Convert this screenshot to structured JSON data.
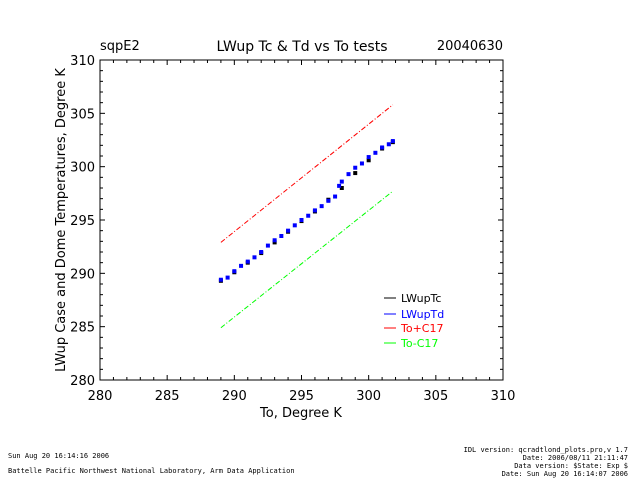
{
  "chart_data": {
    "type": "scatter",
    "site": "sqpE2",
    "title": "LWup Tc & Td vs To tests",
    "date": "20040630",
    "xlabel": "To, Degree K",
    "ylabel": "LWup Case and Dome Temperatures, Degree K",
    "xlim": [
      280,
      310
    ],
    "ylim": [
      280,
      310
    ],
    "xticks": [
      "280",
      "285",
      "290",
      "295",
      "300",
      "305",
      "310"
    ],
    "yticks": [
      "280",
      "285",
      "290",
      "295",
      "300",
      "305",
      "310"
    ],
    "legend_position": "bottom-right",
    "series": [
      {
        "name": "LWupTc",
        "color": "#000000",
        "style": "points",
        "x": [
          289.0,
          290.0,
          291.0,
          292.0,
          293.0,
          294.0,
          295.0,
          296.0,
          297.0,
          298.0,
          299.0,
          300.0,
          301.0,
          301.8
        ],
        "y": [
          289.3,
          290.1,
          291.0,
          291.9,
          292.9,
          293.9,
          294.9,
          295.8,
          296.9,
          298.0,
          299.4,
          300.6,
          301.7,
          302.3
        ]
      },
      {
        "name": "LWupTd",
        "color": "#0000ff",
        "style": "points",
        "x": [
          289.0,
          289.5,
          290.0,
          290.5,
          291.0,
          291.5,
          292.0,
          292.5,
          293.0,
          293.5,
          294.0,
          294.5,
          295.0,
          295.5,
          296.0,
          296.5,
          297.0,
          297.5,
          297.8,
          298.0,
          298.5,
          299.0,
          299.5,
          300.0,
          300.5,
          301.0,
          301.5,
          301.8
        ],
        "y": [
          289.4,
          289.6,
          290.2,
          290.7,
          291.1,
          291.5,
          292.0,
          292.6,
          293.1,
          293.5,
          294.0,
          294.5,
          295.0,
          295.4,
          295.9,
          296.3,
          296.8,
          297.2,
          298.2,
          298.6,
          299.3,
          299.9,
          300.3,
          300.9,
          301.3,
          301.8,
          302.1,
          302.4
        ]
      },
      {
        "name": "To+C17",
        "color": "#ff0000",
        "style": "dash-dot",
        "x": [
          289.0,
          301.8
        ],
        "y": [
          292.9,
          305.8
        ]
      },
      {
        "name": "To-C17",
        "color": "#00ff00",
        "style": "dash-dot",
        "x": [
          289.0,
          301.8
        ],
        "y": [
          284.9,
          297.7
        ]
      }
    ]
  },
  "footer": {
    "timestamp": "Sun Aug 20 16:14:16 2006",
    "organization": "Battelle Pacific Northwest National Laboratory, Arm Data Application",
    "idl_version": "IDL version: qcradtlond_plots.pro,v 1.7",
    "idl_date": "Date: 2006/08/11 21:11:47",
    "data_version": "Data version: $State: Exp $",
    "data_date": "Date: Sun Aug 20 16:14:07 2006"
  }
}
